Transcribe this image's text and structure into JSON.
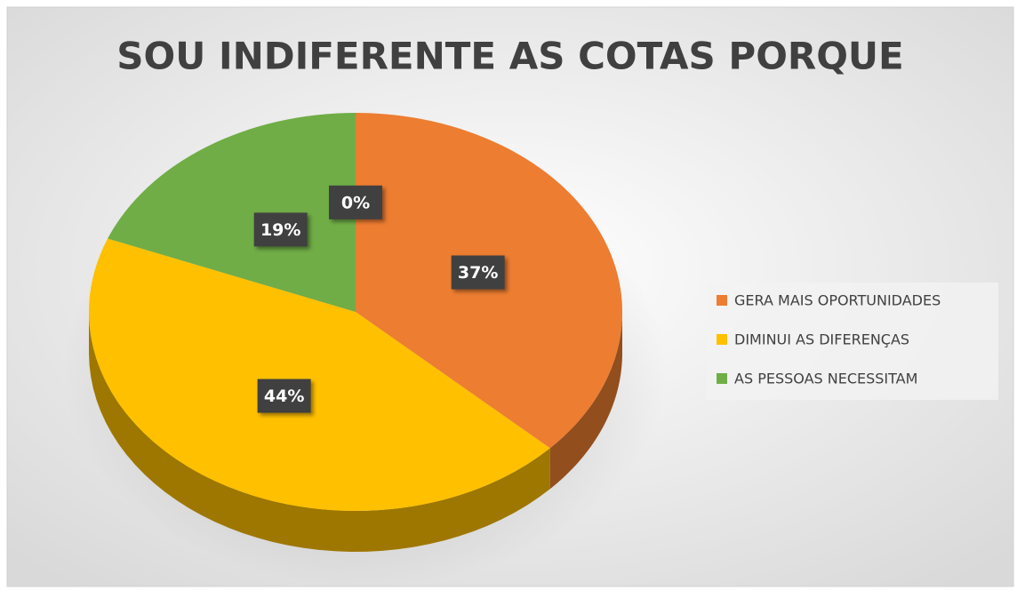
{
  "chart_data": {
    "type": "pie",
    "title": "SOU INDIFERENTE AS COTAS PORQUE",
    "categories": [
      "GERA MAIS OPORTUNIDADES",
      "DIMINUI AS DIFERENÇAS",
      "AS PESSOAS NECESSITAM",
      null
    ],
    "values": [
      37,
      44,
      19,
      0
    ],
    "value_labels": [
      "37%",
      "44%",
      "19%",
      "0%"
    ],
    "colors": [
      "#ed7d31",
      "#ffc000",
      "#70ad47",
      "#4472c4"
    ],
    "legend": "right"
  }
}
